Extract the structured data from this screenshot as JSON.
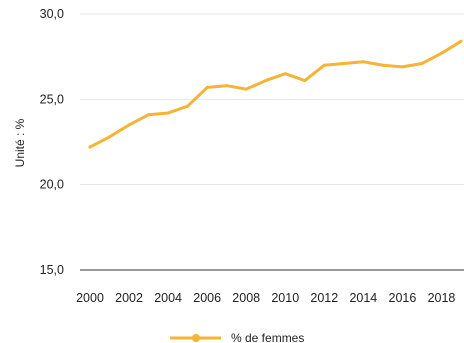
{
  "chart_data": {
    "type": "line",
    "title": "",
    "xlabel": "",
    "ylabel": "Unité : %",
    "x": [
      2000,
      2001,
      2002,
      2003,
      2004,
      2005,
      2006,
      2007,
      2008,
      2009,
      2010,
      2011,
      2012,
      2013,
      2014,
      2015,
      2016,
      2017,
      2018,
      2019
    ],
    "series": [
      {
        "name": "% de femmes",
        "color": "#F5B433",
        "values": [
          22.2,
          22.8,
          23.5,
          24.1,
          24.2,
          24.6,
          25.7,
          25.8,
          25.6,
          26.1,
          26.5,
          26.1,
          27.0,
          27.1,
          27.2,
          27.0,
          26.9,
          27.1,
          27.7,
          28.4
        ]
      }
    ],
    "xticks": [
      "2000",
      "2002",
      "2004",
      "2006",
      "2008",
      "2010",
      "2012",
      "2014",
      "2016",
      "2018"
    ],
    "yticks": [
      "15,0",
      "20,0",
      "25,0",
      "30,0"
    ],
    "ylim": [
      15,
      30
    ],
    "grid": true,
    "legend_position": "bottom-center"
  }
}
